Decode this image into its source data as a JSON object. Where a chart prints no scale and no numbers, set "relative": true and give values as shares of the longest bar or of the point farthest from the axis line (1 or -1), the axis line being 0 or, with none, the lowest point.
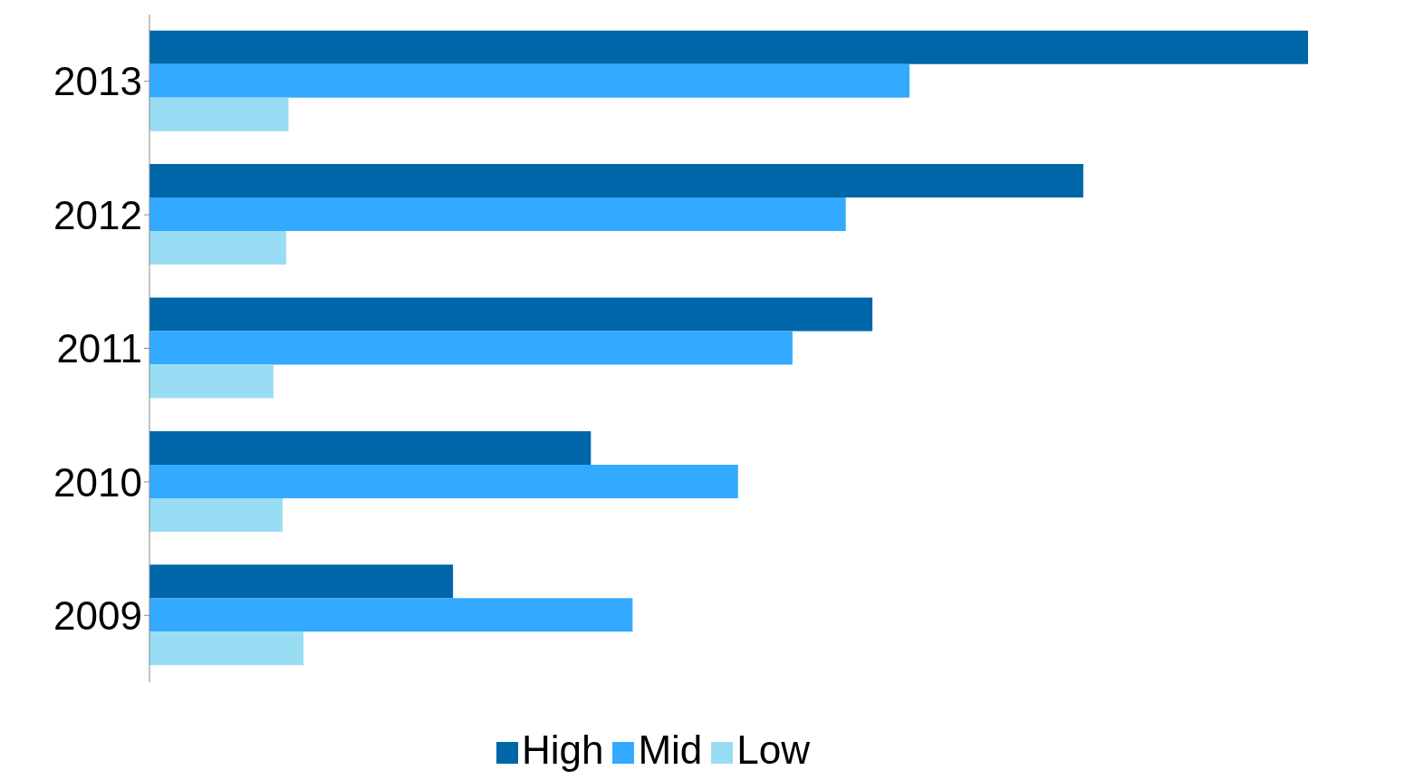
{
  "chart_data": {
    "type": "bar",
    "orientation": "horizontal",
    "relative": true,
    "categories": [
      "2013",
      "2012",
      "2011",
      "2010",
      "2009"
    ],
    "series": [
      {
        "name": "High",
        "color": "#0066aa",
        "values": [
          1,
          0.806,
          0.624,
          0.381,
          0.262
        ]
      },
      {
        "name": "Mid",
        "color": "#33aaff",
        "values": [
          0.656,
          0.601,
          0.555,
          0.508,
          0.417
        ]
      },
      {
        "name": "Low",
        "color": "#99ddf5",
        "values": [
          0.12,
          0.118,
          0.107,
          0.115,
          0.133
        ]
      }
    ],
    "legend": "bottom"
  }
}
